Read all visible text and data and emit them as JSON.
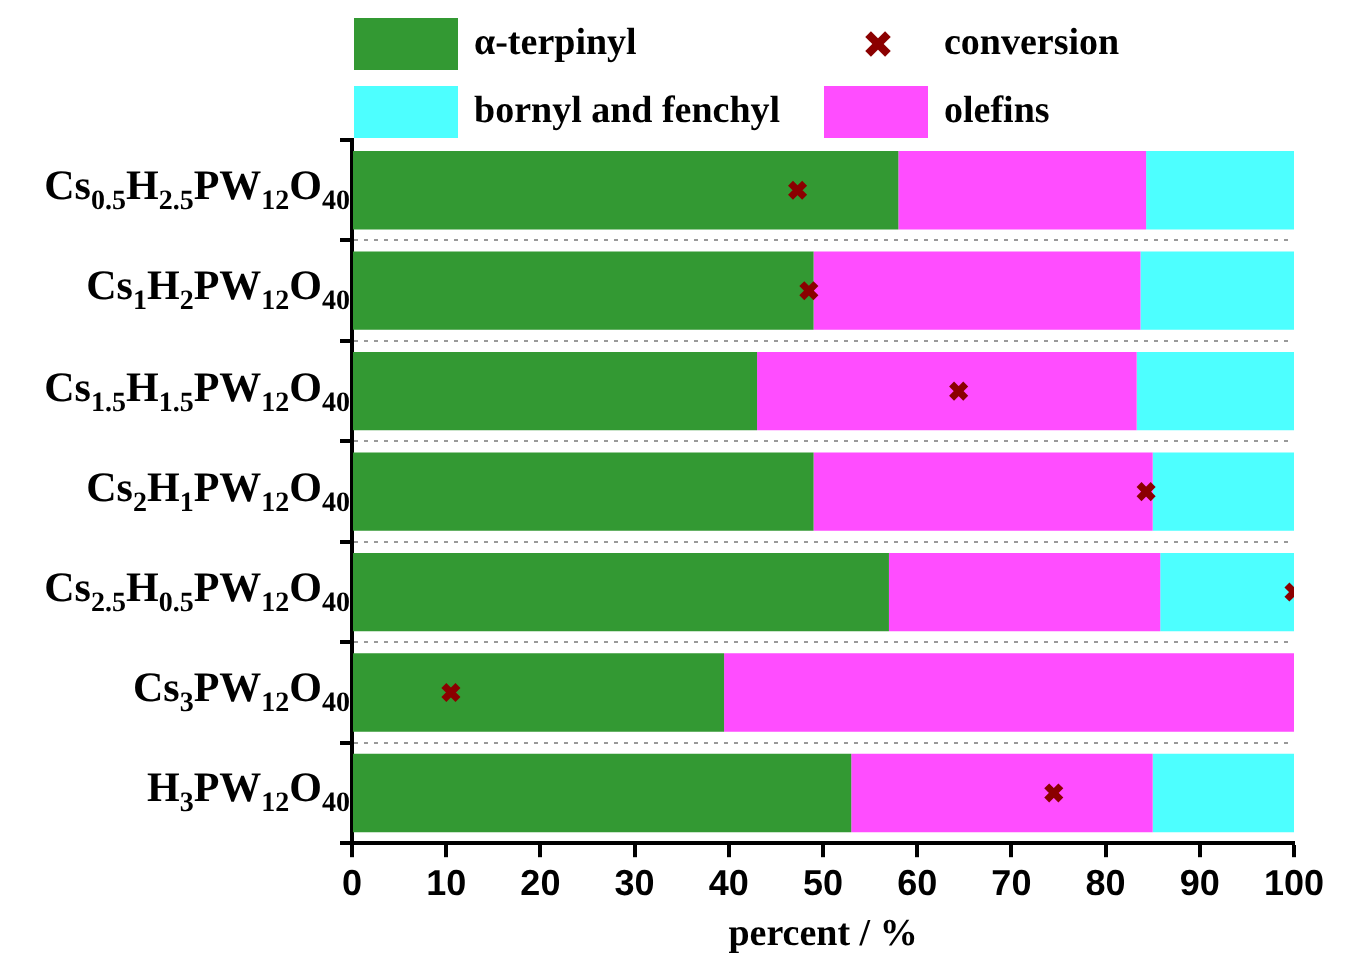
{
  "chart_data": {
    "type": "bar",
    "orientation": "horizontal",
    "stacked": true,
    "categories": [
      "Cs$_{0.5}$H$_{2.5}$PW$_{12}$O$_{40}$",
      "Cs$_{1}$H$_{2}$PW$_{12}$O$_{40}$",
      "Cs$_{1.5}$H$_{1.5}$PW$_{12}$O$_{40}$",
      "Cs$_{2}$H$_{1}$PW$_{12}$O$_{40}$",
      "Cs$_{2.5}$H$_{0.5}$PW$_{12}$O$_{40}$",
      "Cs$_{3}$PW$_{12}$O$_{40}$",
      "H$_{3}$PW$_{12}$O$_{40}$"
    ],
    "series": [
      {
        "name": "α-terpinyl",
        "color": "#339933",
        "values": [
          58,
          49,
          43,
          49,
          57,
          39.5,
          53
        ]
      },
      {
        "name": "olefins",
        "color": "#ff4dff",
        "values": [
          26.3,
          34.7,
          40.3,
          36,
          28.8,
          60.5,
          32
        ]
      },
      {
        "name": "bornyl and fenchyl",
        "color": "#4dffff",
        "values": [
          15.7,
          16.3,
          16.7,
          15,
          14.2,
          0,
          15
        ]
      },
      {
        "name": "conversion",
        "type": "scatter",
        "color": "#8b0000",
        "marker": "cross",
        "x": [
          "Cs$_{0.5}$H$_{2.5}$PW$_{12}$O$_{40}$",
          "Cs$_{1}$H$_{2}$PW$_{12}$O$_{40}$",
          "Cs$_{1.5}$H$_{1.5}$PW$_{12}$O$_{40}$",
          "Cs$_{2}$H$_{1}$PW$_{12}$O$_{40}$",
          "Cs$_{2.5}$H$_{0.5}$PW$_{12}$O$_{40}$",
          "Cs$_{3}$PW$_{12}$O$_{40}$",
          "H$_{3}$PW$_{12}$O$_{40}$"
        ],
        "values": [
          47.3,
          48.5,
          64.4,
          84.3,
          100,
          10.5,
          74.5
        ]
      }
    ],
    "xlabel": "percent / %",
    "xlim": [
      0,
      100
    ],
    "xticks": [
      0,
      10,
      20,
      30,
      40,
      50,
      60,
      70,
      80,
      90,
      100
    ],
    "grid": "y",
    "legend": "top"
  }
}
